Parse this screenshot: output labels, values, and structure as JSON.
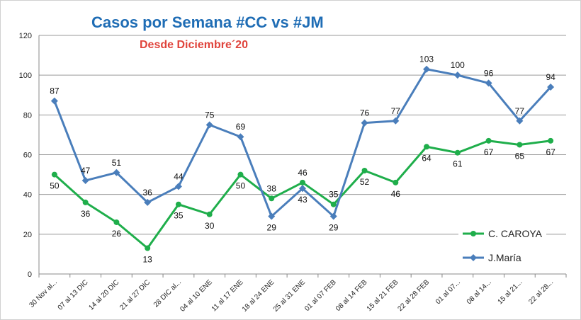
{
  "chart_data": {
    "type": "line",
    "title": "Casos por Semana #CC vs #JM",
    "subtitle": "Desde Diciembre´20",
    "xlabel": "",
    "ylabel": "",
    "ylim": [
      0,
      120
    ],
    "yticks": [
      0,
      20,
      40,
      60,
      80,
      100,
      120
    ],
    "grid": true,
    "legend_position": "bottom-right",
    "categories": [
      "30 Nov al...",
      "07 al 13 DIC",
      "14 al 20 DIC",
      "21 al 27 DIC",
      "28 DIC al...",
      "04 al 10 ENE",
      "11 al 17 ENE",
      "18 al 24 ENE",
      "25 al 31 ENE",
      "01 al 07 FEB",
      "08 al 14 FEB",
      "15 al 21 FEB",
      "22 al 28 FEB",
      "01 al 07...",
      "08 al 14...",
      "15 al 21...",
      "22 al 28..."
    ],
    "series": [
      {
        "name": "C. CAROYA",
        "color": "#1fae4b",
        "marker": "circle",
        "values": [
          50,
          36,
          26,
          13,
          35,
          30,
          50,
          38,
          46,
          35,
          52,
          46,
          64,
          61,
          67,
          65,
          67
        ]
      },
      {
        "name": "J.María",
        "color": "#4a7ebb",
        "marker": "diamond",
        "values": [
          87,
          47,
          51,
          36,
          44,
          75,
          69,
          29,
          43,
          29,
          76,
          77,
          103,
          100,
          96,
          77,
          94
        ]
      }
    ]
  }
}
